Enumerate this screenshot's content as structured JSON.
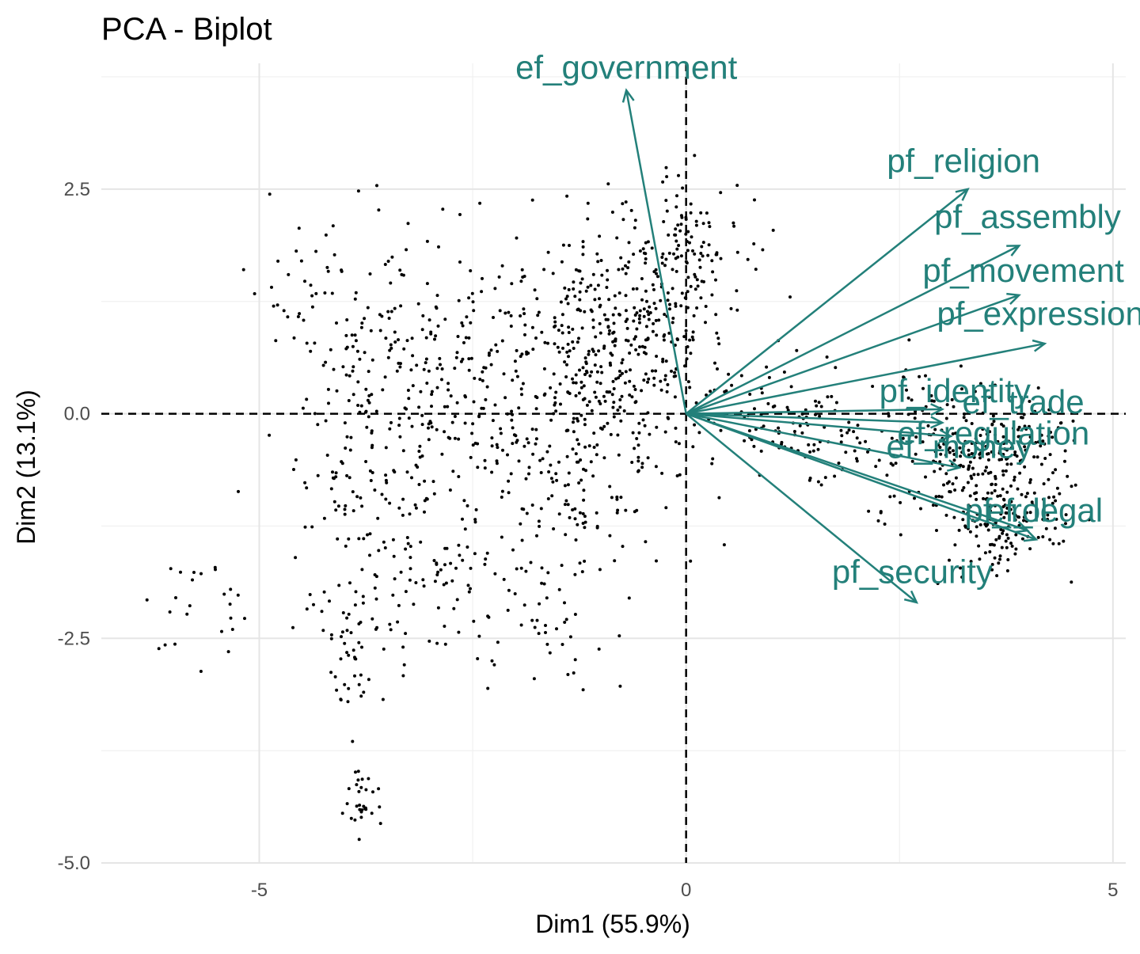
{
  "chart_data": {
    "type": "scatter",
    "title": "PCA - Biplot",
    "xlabel": "Dim1 (55.9%)",
    "ylabel": "Dim2 (13.1%)",
    "xlim": [
      -6.85,
      5.15
    ],
    "ylim": [
      -5.0,
      3.9
    ],
    "x_ticks": [
      -5,
      0,
      5
    ],
    "x_tick_labels": [
      "-5",
      "0",
      "5"
    ],
    "y_ticks": [
      -5.0,
      -2.5,
      0.0,
      2.5
    ],
    "y_tick_labels": [
      "-5.0",
      "-2.5",
      "0.0",
      "2.5"
    ],
    "grid": true,
    "zero_lines": true,
    "colors": {
      "points": "#000000",
      "variables": "#23807a"
    },
    "variables": [
      {
        "name": "ef_government",
        "x": -0.7,
        "y": 3.6,
        "label_x": -0.7,
        "label_y": 3.85
      },
      {
        "name": "pf_religion",
        "x": 3.3,
        "y": 2.5,
        "label_x": 3.25,
        "label_y": 2.81
      },
      {
        "name": "pf_assembly",
        "x": 3.9,
        "y": 1.87,
        "label_x": 4.0,
        "label_y": 2.19
      },
      {
        "name": "pf_movement",
        "x": 3.9,
        "y": 1.32,
        "label_x": 3.95,
        "label_y": 1.59
      },
      {
        "name": "pf_expression",
        "x": 4.2,
        "y": 0.78,
        "label_x": 4.15,
        "label_y": 1.11
      },
      {
        "name": "pf_identity",
        "x": 3.0,
        "y": 0.05,
        "label_x": 3.15,
        "label_y": 0.25
      },
      {
        "name": "ef_trade",
        "x": 3.0,
        "y": -0.1,
        "label_x": 3.95,
        "label_y": 0.13
      },
      {
        "name": "ef_regulation",
        "x": 3.1,
        "y": -0.25,
        "label_x": 3.6,
        "label_y": -0.22
      },
      {
        "name": "ef_money",
        "x": 3.2,
        "y": -0.6,
        "label_x": 3.2,
        "label_y": -0.37
      },
      {
        "name": "pf_rol",
        "x": 4.0,
        "y": -1.3,
        "label_x": 3.75,
        "label_y": -1.08
      },
      {
        "name": "ef_legal",
        "x": 4.1,
        "y": -1.4,
        "label_x": 4.2,
        "label_y": -1.08
      },
      {
        "name": "pf_security",
        "x": 2.7,
        "y": -2.1,
        "label_x": 2.65,
        "label_y": -1.76
      }
    ],
    "individuals": []
  }
}
